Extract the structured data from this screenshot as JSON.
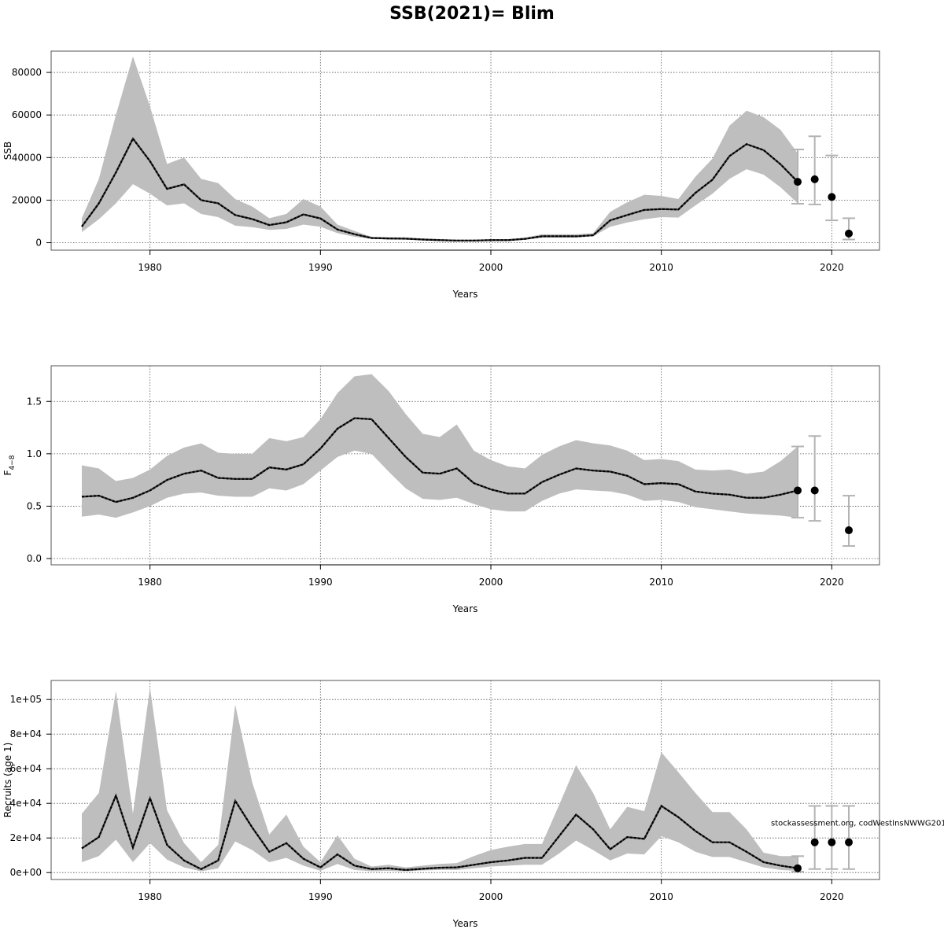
{
  "title": "SSB(2021)= Blim",
  "annotation": "stockassessment.org, codWestInsNWWG201",
  "colors": {
    "band": "#bebebe",
    "line": "#000000",
    "errorbar": "#b3b3b3",
    "grid": "#555555"
  },
  "chart_data": [
    {
      "type": "line",
      "ylabel": "SSB",
      "ylabel_sub": "",
      "xlabel": "Years",
      "xlim": [
        1974.2,
        2022.8
      ],
      "ylim": [
        -3500,
        90000
      ],
      "xticks": [
        1980,
        1990,
        2000,
        2010,
        2020
      ],
      "yticks": [
        0,
        20000,
        40000,
        60000,
        80000
      ],
      "ytick_labels": [
        "0",
        "20000",
        "40000",
        "60000",
        "80000"
      ],
      "grid": true,
      "years": [
        1976,
        1977,
        1978,
        1979,
        1980,
        1981,
        1982,
        1983,
        1984,
        1985,
        1986,
        1987,
        1988,
        1989,
        1990,
        1991,
        1992,
        1993,
        1994,
        1995,
        1996,
        1997,
        1998,
        1999,
        2000,
        2001,
        2002,
        2003,
        2004,
        2005,
        2006,
        2007,
        2008,
        2009,
        2010,
        2011,
        2012,
        2013,
        2014,
        2015,
        2016,
        2017,
        2018
      ],
      "estimate": [
        7600,
        18500,
        33000,
        48900,
        38300,
        25300,
        27400,
        20000,
        18500,
        13000,
        11100,
        8300,
        9600,
        13300,
        11400,
        6200,
        4000,
        2200,
        2000,
        1900,
        1500,
        1200,
        1000,
        1000,
        1200,
        1200,
        1800,
        3000,
        3000,
        3000,
        3500,
        10500,
        13000,
        15400,
        15800,
        15600,
        23400,
        29600,
        40700,
        46300,
        43500,
        36800,
        28600
      ],
      "upper": [
        11500,
        30000,
        60000,
        87500,
        64000,
        37000,
        40000,
        30000,
        28000,
        20500,
        17000,
        11500,
        13500,
        20500,
        17000,
        8500,
        5500,
        2800,
        2600,
        2500,
        2000,
        1700,
        1400,
        1400,
        1600,
        1600,
        2400,
        4000,
        4000,
        4000,
        4500,
        14500,
        19000,
        22500,
        22000,
        20500,
        31000,
        39500,
        55000,
        62000,
        59000,
        53000,
        42000
      ],
      "lower": [
        5000,
        11000,
        18500,
        27500,
        23000,
        17500,
        18500,
        13500,
        12000,
        8000,
        7300,
        6000,
        6500,
        8500,
        7500,
        4500,
        2800,
        1800,
        1500,
        1400,
        1100,
        900,
        700,
        700,
        900,
        900,
        1400,
        2400,
        2400,
        2400,
        3000,
        7500,
        9500,
        11000,
        12000,
        11800,
        17500,
        23000,
        30000,
        34500,
        32000,
        26000,
        18500
      ],
      "forecast": [
        {
          "year": 2018,
          "value": 28600,
          "low": 18300,
          "high": 43800
        },
        {
          "year": 2019,
          "value": 29800,
          "low": 18000,
          "high": 50000
        },
        {
          "year": 2020,
          "value": 21500,
          "low": 10500,
          "high": 41000
        },
        {
          "year": 2021,
          "value": 4300,
          "low": 1500,
          "high": 11500
        }
      ]
    },
    {
      "type": "line",
      "ylabel": "F",
      "ylabel_sub": "4−8",
      "xlabel": "Years",
      "xlim": [
        1974.2,
        2022.8
      ],
      "ylim": [
        -0.06,
        1.84
      ],
      "xticks": [
        1980,
        1990,
        2000,
        2010,
        2020
      ],
      "yticks": [
        0,
        0.5,
        1.0,
        1.5
      ],
      "ytick_labels": [
        "0.0",
        "0.5",
        "1.0",
        "1.5"
      ],
      "grid": true,
      "years": [
        1976,
        1977,
        1978,
        1979,
        1980,
        1981,
        1982,
        1983,
        1984,
        1985,
        1986,
        1987,
        1988,
        1989,
        1990,
        1991,
        1992,
        1993,
        1994,
        1995,
        1996,
        1997,
        1998,
        1999,
        2000,
        2001,
        2002,
        2003,
        2004,
        2005,
        2006,
        2007,
        2008,
        2009,
        2010,
        2011,
        2012,
        2013,
        2014,
        2015,
        2016,
        2017,
        2018
      ],
      "estimate": [
        0.59,
        0.6,
        0.54,
        0.58,
        0.65,
        0.75,
        0.81,
        0.84,
        0.77,
        0.76,
        0.76,
        0.87,
        0.85,
        0.9,
        1.05,
        1.24,
        1.34,
        1.33,
        1.15,
        0.97,
        0.82,
        0.81,
        0.86,
        0.72,
        0.66,
        0.62,
        0.62,
        0.73,
        0.8,
        0.86,
        0.84,
        0.83,
        0.79,
        0.71,
        0.72,
        0.71,
        0.64,
        0.62,
        0.61,
        0.58,
        0.58,
        0.61,
        0.65
      ],
      "upper": [
        0.89,
        0.86,
        0.74,
        0.77,
        0.85,
        0.98,
        1.06,
        1.1,
        1.01,
        1.0,
        1.0,
        1.15,
        1.12,
        1.16,
        1.33,
        1.58,
        1.74,
        1.76,
        1.6,
        1.38,
        1.19,
        1.16,
        1.28,
        1.03,
        0.94,
        0.88,
        0.86,
        0.99,
        1.07,
        1.13,
        1.1,
        1.08,
        1.03,
        0.94,
        0.95,
        0.93,
        0.85,
        0.84,
        0.85,
        0.81,
        0.83,
        0.93,
        1.07
      ],
      "lower": [
        0.4,
        0.42,
        0.39,
        0.44,
        0.5,
        0.58,
        0.62,
        0.63,
        0.6,
        0.59,
        0.59,
        0.67,
        0.65,
        0.71,
        0.84,
        0.97,
        1.03,
        1.0,
        0.83,
        0.67,
        0.57,
        0.56,
        0.58,
        0.52,
        0.47,
        0.45,
        0.45,
        0.55,
        0.62,
        0.66,
        0.65,
        0.64,
        0.61,
        0.55,
        0.56,
        0.54,
        0.49,
        0.47,
        0.45,
        0.43,
        0.42,
        0.41,
        0.39
      ],
      "forecast": [
        {
          "year": 2018,
          "value": 0.65,
          "low": 0.39,
          "high": 1.07
        },
        {
          "year": 2019,
          "value": 0.65,
          "low": 0.36,
          "high": 1.17
        },
        {
          "year": 2021,
          "value": 0.27,
          "low": 0.12,
          "high": 0.6
        }
      ]
    },
    {
      "type": "line",
      "ylabel": "Recruits (age 1)",
      "ylabel_sub": "",
      "xlabel": "Years",
      "xlim": [
        1974.2,
        2022.8
      ],
      "ylim": [
        -4000,
        111000
      ],
      "xticks": [
        1980,
        1990,
        2000,
        2010,
        2020
      ],
      "yticks": [
        0,
        20000,
        40000,
        60000,
        80000,
        100000
      ],
      "ytick_labels": [
        "0e+00",
        "2e+04",
        "4e+04",
        "6e+04",
        "8e+04",
        "1e+05"
      ],
      "grid": true,
      "years": [
        1976,
        1977,
        1978,
        1979,
        1980,
        1981,
        1982,
        1983,
        1984,
        1985,
        1986,
        1987,
        1988,
        1989,
        1990,
        1991,
        1992,
        1993,
        1994,
        1995,
        1996,
        1997,
        1998,
        1999,
        2000,
        2001,
        2002,
        2003,
        2004,
        2005,
        2006,
        2007,
        2008,
        2009,
        2010,
        2011,
        2012,
        2013,
        2014,
        2015,
        2016,
        2017,
        2018
      ],
      "estimate": [
        14000,
        20500,
        44500,
        14500,
        43000,
        16000,
        7000,
        2000,
        7000,
        41500,
        26000,
        12000,
        17000,
        8000,
        3000,
        10500,
        4000,
        2000,
        2500,
        1500,
        2200,
        2800,
        3000,
        4500,
        6000,
        7000,
        8500,
        8500,
        21000,
        33500,
        25000,
        13500,
        20500,
        19500,
        38500,
        32000,
        24000,
        17500,
        17500,
        12000,
        6000,
        4000,
        2500
      ],
      "upper": [
        34000,
        46000,
        105000,
        34000,
        107000,
        36000,
        17000,
        6000,
        16000,
        97000,
        52000,
        22000,
        33500,
        15000,
        6000,
        21500,
        8000,
        3500,
        4500,
        3000,
        4000,
        5000,
        5500,
        9500,
        13000,
        15000,
        16500,
        16500,
        39000,
        62000,
        46000,
        25000,
        38000,
        35500,
        69500,
        58000,
        46000,
        35000,
        35000,
        25000,
        11500,
        9500,
        9500
      ],
      "lower": [
        6000,
        9500,
        19000,
        6000,
        17000,
        7500,
        3000,
        700,
        2500,
        18000,
        13000,
        6000,
        8500,
        4000,
        1000,
        5000,
        1500,
        800,
        1000,
        700,
        1200,
        1500,
        1500,
        2500,
        3500,
        4000,
        4500,
        4500,
        11000,
        18500,
        13000,
        7000,
        11000,
        10500,
        21000,
        17500,
        12000,
        9000,
        9000,
        6000,
        3000,
        1500,
        1000
      ],
      "forecast": [
        {
          "year": 2018,
          "value": 2500,
          "low": 500,
          "high": 9500
        },
        {
          "year": 2019,
          "value": 17500,
          "low": 2000,
          "high": 38500
        },
        {
          "year": 2020,
          "value": 17500,
          "low": 2000,
          "high": 38500
        },
        {
          "year": 2021,
          "value": 17500,
          "low": 2000,
          "high": 38500
        }
      ]
    }
  ]
}
